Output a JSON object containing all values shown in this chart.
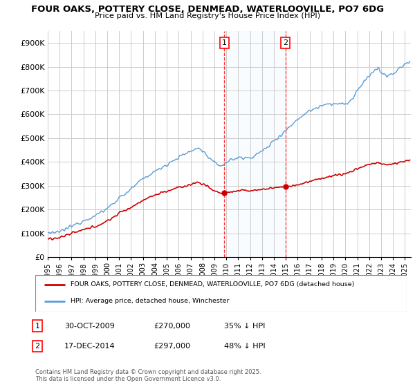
{
  "title_line1": "FOUR OAKS, POTTERY CLOSE, DENMEAD, WATERLOOVILLE, PO7 6DG",
  "title_line2": "Price paid vs. HM Land Registry's House Price Index (HPI)",
  "ylim": [
    0,
    950000
  ],
  "yticks": [
    0,
    100000,
    200000,
    300000,
    400000,
    500000,
    600000,
    700000,
    800000,
    900000
  ],
  "ytick_labels": [
    "£0",
    "£100K",
    "£200K",
    "£300K",
    "£400K",
    "£500K",
    "£600K",
    "£700K",
    "£800K",
    "£900K"
  ],
  "hpi_color": "#5b9bd5",
  "price_color": "#cc0000",
  "legend_line1": "FOUR OAKS, POTTERY CLOSE, DENMEAD, WATERLOOVILLE, PO7 6DG (detached house)",
  "legend_line2": "HPI: Average price, detached house, Winchester",
  "footnote": "Contains HM Land Registry data © Crown copyright and database right 2025.\nThis data is licensed under the Open Government Licence v3.0.",
  "background_color": "#ffffff",
  "grid_color": "#cccccc",
  "shade_color": "#ddeeff",
  "marker1_year": 2009.833,
  "marker2_year": 2014.958,
  "marker1_price": 270000,
  "marker2_price": 297000,
  "ann1_date": "30-OCT-2009",
  "ann1_price": "£270,000",
  "ann1_pct": "35% ↓ HPI",
  "ann2_date": "17-DEC-2014",
  "ann2_price": "£297,000",
  "ann2_pct": "48% ↓ HPI"
}
